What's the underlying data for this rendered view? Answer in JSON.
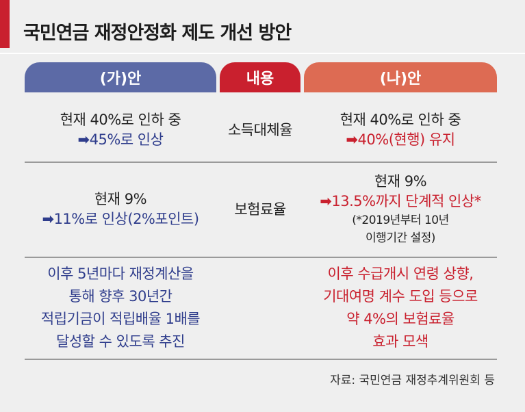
{
  "title": "국민연금 재정안정화 제도 개선 방안",
  "headers": {
    "plan_a": "(가)안",
    "content": "내용",
    "plan_b": "(나)안"
  },
  "rows": [
    {
      "category": "소득대체율",
      "plan_a": {
        "line1": "현재 40%로 인하 중",
        "arrow_text": "45%로 인상"
      },
      "plan_b": {
        "line1": "현재 40%로 인하 중",
        "arrow_text": "40%(현행) 유지"
      }
    },
    {
      "category": "보험료율",
      "plan_a": {
        "line1": "현재 9%",
        "arrow_text": "11%로 인상(2%포인트)"
      },
      "plan_b": {
        "line1": "현재 9%",
        "arrow_text": "13.5%까지 단계적 인상*",
        "note1": "(*2019년부터 10년",
        "note2": "이행기간 설정)"
      }
    }
  ],
  "summary": {
    "plan_a": [
      "이후 5년마다 재정계산을",
      "통해 향후 30년간",
      "적립기금이 적립배율 1배를",
      "달성할 수 있도록 추진"
    ],
    "plan_b": [
      "이후 수급개시 연령 상향,",
      "기대여명 계수 도입 등으로",
      "약 4%의 보험료율",
      "효과 모색"
    ]
  },
  "source": "자료: 국민연금 재정추계위원회 등",
  "icons": {
    "arrow": "➡"
  },
  "colors": {
    "accent": "#c9202e",
    "plan_a": "#5c6aa6",
    "plan_b": "#dd6b53",
    "text_blue": "#2f3d8c"
  }
}
